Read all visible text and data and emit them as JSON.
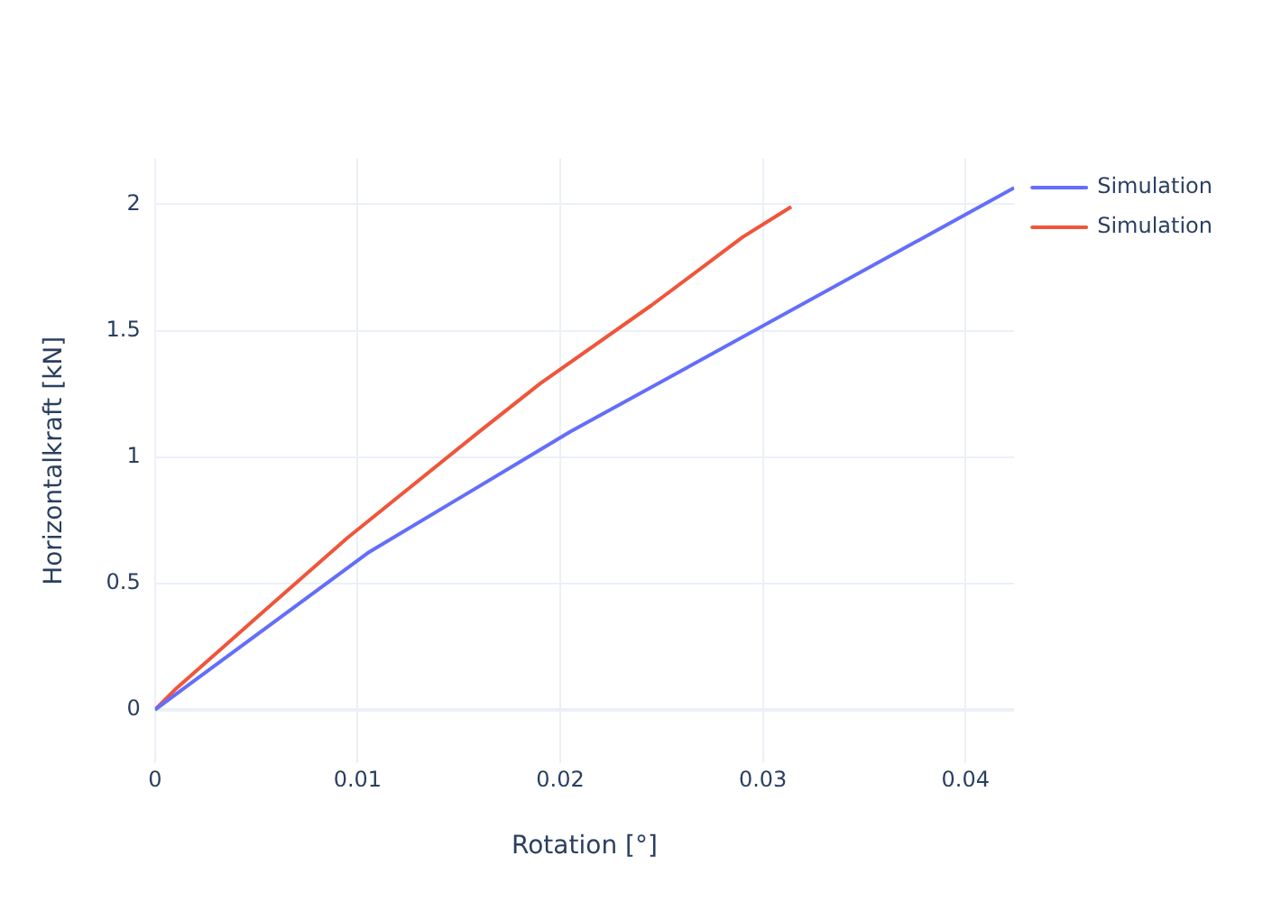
{
  "chart_data": {
    "type": "line",
    "xlabel": "Rotation [°]",
    "ylabel": "Horizontalkraft [kN]",
    "xlim": [
      0,
      0.0424
    ],
    "xticks": [
      0,
      0.01,
      0.02,
      0.03,
      0.04
    ],
    "ylim": [
      -0.21,
      2.18
    ],
    "yticks": [
      0,
      0.5,
      1,
      1.5,
      2
    ],
    "grid": true,
    "legend": "top right",
    "marker": "none",
    "line_style": "solid",
    "series": [
      {
        "name": "Simulation",
        "color": "#636efa",
        "x": [
          0,
          0.0105,
          0.0205,
          0.0424
        ],
        "values": [
          0,
          0.62,
          1.1,
          2.065
        ]
      },
      {
        "name": "Simulation",
        "color": "#ef553b",
        "x": [
          0,
          0.001,
          0.0051,
          0.0095,
          0.016,
          0.019,
          0.0245,
          0.029,
          0.0314
        ],
        "values": [
          0,
          0.08,
          0.37,
          0.68,
          1.1,
          1.29,
          1.6,
          1.87,
          1.99
        ]
      }
    ]
  }
}
